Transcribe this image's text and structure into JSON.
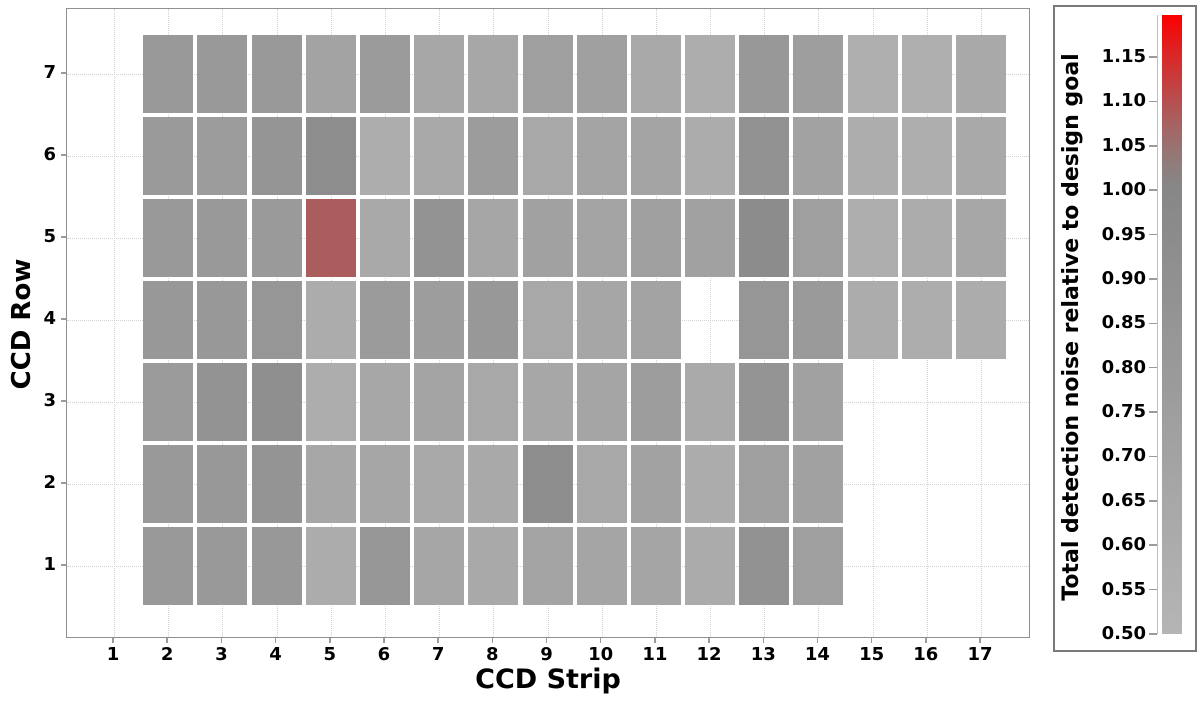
{
  "chart_data": {
    "type": "heatmap",
    "title": "",
    "xlabel": "CCD Strip",
    "ylabel": "CCD Row",
    "x_tick_labels": [
      "1",
      "2",
      "3",
      "4",
      "5",
      "6",
      "7",
      "8",
      "9",
      "10",
      "11",
      "12",
      "13",
      "14",
      "15",
      "16",
      "17"
    ],
    "y_tick_labels": [
      "1",
      "2",
      "3",
      "4",
      "5",
      "6",
      "7"
    ],
    "x_axis_range": [
      0.1,
      17.9
    ],
    "y_axis_range": [
      0.3,
      7.7
    ],
    "grid": "dotted",
    "colorbar": {
      "label": "Total detection noise relative to design goal",
      "tick_labels": [
        "0.50",
        "0.55",
        "0.60",
        "0.65",
        "0.70",
        "0.75",
        "0.80",
        "0.85",
        "0.90",
        "0.95",
        "1.00",
        "1.05",
        "1.10",
        "1.15"
      ],
      "vmin": 0.5,
      "vmax": 1.197,
      "gray_break": 1.0,
      "color_low": "#b5b5b5",
      "color_break": "#878787",
      "color_high": "#fb0000",
      "position": "right"
    },
    "missing_cells": [
      {
        "strip": 12,
        "row": 4
      },
      {
        "strip": 1,
        "row": "all"
      },
      {
        "strips": "15-17",
        "rows": "1-3"
      }
    ],
    "rows": [
      {
        "row": 7,
        "first_strip": 2,
        "values": [
          0.8,
          0.8,
          0.8,
          0.7,
          0.78,
          0.65,
          0.65,
          0.74,
          0.73,
          0.64,
          0.59,
          0.81,
          0.75,
          0.56,
          0.56,
          0.63
        ]
      },
      {
        "row": 6,
        "first_strip": 2,
        "values": [
          0.79,
          0.77,
          0.85,
          0.93,
          0.59,
          0.63,
          0.77,
          0.64,
          0.68,
          0.69,
          0.6,
          0.88,
          0.71,
          0.59,
          0.58,
          0.63
        ]
      },
      {
        "row": 5,
        "first_strip": 2,
        "values": [
          0.8,
          0.8,
          0.79,
          1.08,
          0.63,
          0.87,
          0.66,
          0.72,
          0.69,
          0.74,
          0.72,
          0.95,
          0.74,
          0.58,
          0.6,
          0.65
        ]
      },
      {
        "row": 4,
        "first_strip": 2,
        "values": [
          0.81,
          0.82,
          0.84,
          0.6,
          0.78,
          0.76,
          0.82,
          0.64,
          0.66,
          0.7,
          null,
          0.84,
          0.79,
          0.6,
          0.59,
          0.6
        ]
      },
      {
        "row": 3,
        "first_strip": 2,
        "values": [
          0.78,
          0.87,
          0.91,
          0.59,
          0.65,
          0.68,
          0.64,
          0.65,
          0.67,
          0.76,
          0.62,
          0.86,
          0.72
        ]
      },
      {
        "row": 2,
        "first_strip": 2,
        "values": [
          0.8,
          0.81,
          0.86,
          0.65,
          0.66,
          0.64,
          0.63,
          0.93,
          0.64,
          0.71,
          0.6,
          0.74,
          0.72
        ]
      },
      {
        "row": 1,
        "first_strip": 2,
        "values": [
          0.8,
          0.8,
          0.81,
          0.6,
          0.84,
          0.66,
          0.63,
          0.69,
          0.67,
          0.67,
          0.61,
          0.88,
          0.74
        ]
      }
    ]
  }
}
